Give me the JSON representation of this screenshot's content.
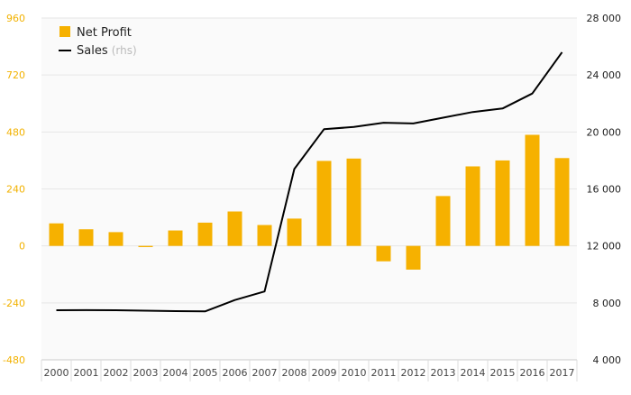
{
  "chart_data": {
    "type": "bar+line",
    "categories": [
      "2000",
      "2001",
      "2002",
      "2003",
      "2004",
      "2005",
      "2006",
      "2007",
      "2008",
      "2009",
      "2010",
      "2011",
      "2012",
      "2013",
      "2014",
      "2015",
      "2016",
      "2017"
    ],
    "series": [
      {
        "name": "Net Profit",
        "type": "bar",
        "axis": "left",
        "color": "#f6b100",
        "values": [
          95,
          70,
          58,
          -5,
          65,
          98,
          145,
          88,
          115,
          358,
          368,
          -65,
          -100,
          210,
          335,
          360,
          468,
          370
        ]
      },
      {
        "name": "Sales",
        "name_note": "(rhs)",
        "type": "line",
        "axis": "right",
        "color": "#000000",
        "values": [
          7480,
          7490,
          7480,
          7450,
          7420,
          7400,
          8200,
          8800,
          17400,
          20200,
          20350,
          20650,
          20600,
          21000,
          21400,
          21650,
          22700,
          25600
        ]
      }
    ],
    "left_axis": {
      "ticks": [
        960,
        720,
        480,
        240,
        0,
        -240,
        -480
      ],
      "tick_labels": [
        "960",
        "720",
        "480",
        "240",
        "0",
        "-240",
        "-480"
      ],
      "range": [
        -480,
        960
      ]
    },
    "right_axis": {
      "ticks": [
        28000,
        24000,
        20000,
        16000,
        12000,
        8000,
        4000
      ],
      "tick_labels": [
        "28 000",
        "24 000",
        "20 000",
        "16 000",
        "12 000",
        "8 000",
        "4 000"
      ],
      "range": [
        4000,
        28000
      ]
    },
    "grid": true,
    "legend_position": "top-left"
  }
}
